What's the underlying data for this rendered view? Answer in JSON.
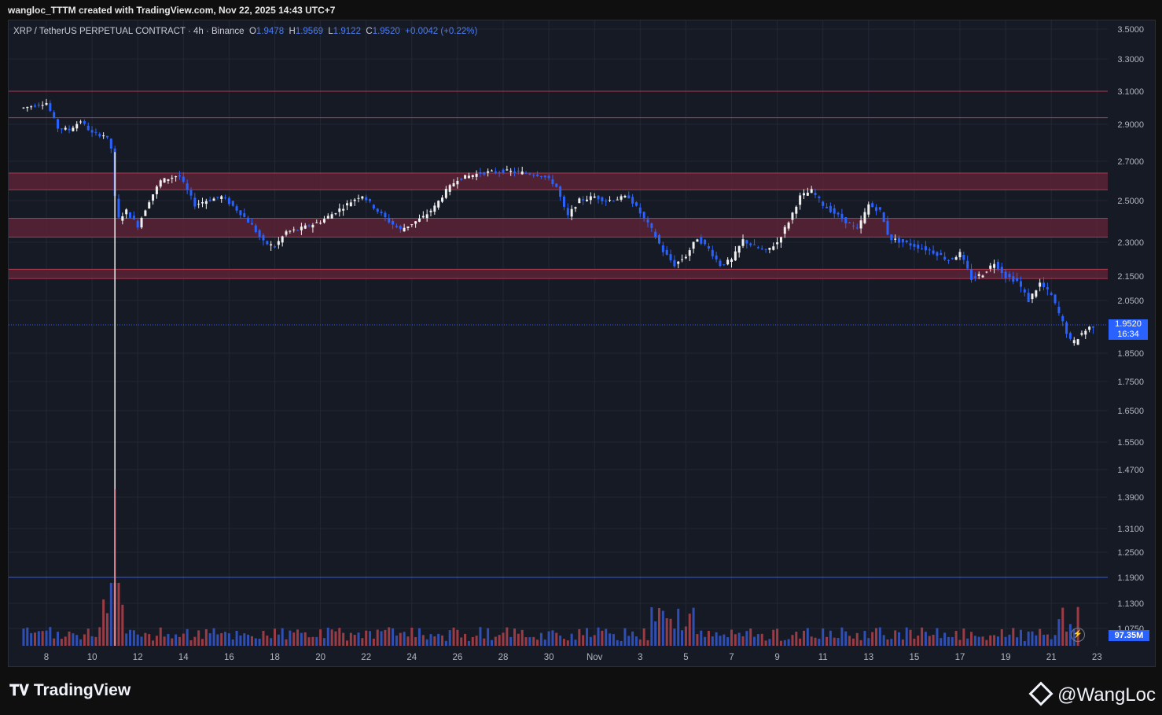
{
  "header": {
    "caption": "wangloc_TTTM created with TradingView.com, Nov 22, 2025 14:43 UTC+7"
  },
  "legend": {
    "symbol": "XRP / TetherUS PERPETUAL CONTRACT · 4h · Binance",
    "o_label": "O",
    "o_value": "1.9478",
    "h_label": "H",
    "h_value": "1.9569",
    "l_label": "L",
    "l_value": "1.9122",
    "c_label": "C",
    "c_value": "1.9520",
    "change": "+0.0042 (+0.22%)"
  },
  "price_tag": {
    "price": "1.9520",
    "countdown": "16:34"
  },
  "volume_tag": "97.35M",
  "branding": {
    "logo_text": "TradingView",
    "author": "@WangLoc"
  },
  "colors": {
    "background": "#161a25",
    "up": "#f0f0f0",
    "down_wick": "#2962ff",
    "zone_fill": "#5b2335",
    "zone_line": "#b0384f",
    "volume_up": "#2f4fb4",
    "volume_down": "#9a3c45",
    "last_price": "#2962ff"
  },
  "chart_data": {
    "type": "candlestick",
    "symbol": "XRP / TetherUS PERPETUAL CONTRACT",
    "interval": "4h",
    "exchange": "Binance",
    "y_ticks": [
      "3.5000",
      "3.3000",
      "3.1000",
      "2.9000",
      "2.7000",
      "2.5000",
      "2.3000",
      "2.1500",
      "2.0500",
      "1.8500",
      "1.7500",
      "1.6500",
      "1.5500",
      "1.4700",
      "1.3900",
      "1.3100",
      "1.2500",
      "1.1900",
      "1.1300",
      "1.0750"
    ],
    "x_ticks": [
      "8",
      "10",
      "12",
      "14",
      "16",
      "18",
      "20",
      "22",
      "24",
      "26",
      "28",
      "30",
      "Nov",
      "3",
      "5",
      "7",
      "9",
      "11",
      "13",
      "15",
      "17",
      "19",
      "21",
      "23"
    ],
    "last_price": 1.952,
    "horizontal_lines": [
      3.1,
      2.94,
      1.19
    ],
    "zones": [
      {
        "low": 2.555,
        "high": 2.64
      },
      {
        "low": 2.325,
        "high": 2.415
      },
      {
        "low": 2.14,
        "high": 2.18
      }
    ],
    "series": [
      {
        "day": 7,
        "value": 3.0
      },
      {
        "day": 8,
        "value": 3.03
      },
      {
        "day": 8.5,
        "value": 2.88
      },
      {
        "day": 9,
        "value": 2.87
      },
      {
        "day": 9.5,
        "value": 2.92
      },
      {
        "day": 10,
        "value": 2.85
      },
      {
        "day": 10.6,
        "value": 2.84
      },
      {
        "day": 10.9,
        "value": 2.75
      },
      {
        "day": 11.05,
        "value": 2.4
      },
      {
        "day": 11.5,
        "value": 2.45
      },
      {
        "day": 12,
        "value": 2.38
      },
      {
        "day": 12.5,
        "value": 2.5
      },
      {
        "day": 13,
        "value": 2.6
      },
      {
        "day": 13.8,
        "value": 2.63
      },
      {
        "day": 14.5,
        "value": 2.48
      },
      {
        "day": 15,
        "value": 2.5
      },
      {
        "day": 15.7,
        "value": 2.52
      },
      {
        "day": 16.5,
        "value": 2.44
      },
      {
        "day": 17,
        "value": 2.38
      },
      {
        "day": 17.5,
        "value": 2.3
      },
      {
        "day": 18,
        "value": 2.28
      },
      {
        "day": 18.5,
        "value": 2.35
      },
      {
        "day": 19,
        "value": 2.36
      },
      {
        "day": 20,
        "value": 2.4
      },
      {
        "day": 21,
        "value": 2.47
      },
      {
        "day": 21.8,
        "value": 2.53
      },
      {
        "day": 22.5,
        "value": 2.45
      },
      {
        "day": 23,
        "value": 2.4
      },
      {
        "day": 23.5,
        "value": 2.36
      },
      {
        "day": 24.5,
        "value": 2.42
      },
      {
        "day": 25,
        "value": 2.47
      },
      {
        "day": 25.5,
        "value": 2.55
      },
      {
        "day": 26,
        "value": 2.61
      },
      {
        "day": 27,
        "value": 2.64
      },
      {
        "day": 28,
        "value": 2.65
      },
      {
        "day": 29,
        "value": 2.64
      },
      {
        "day": 29.7,
        "value": 2.63
      },
      {
        "day": 30.3,
        "value": 2.58
      },
      {
        "day": 30.8,
        "value": 2.42
      },
      {
        "day": 31.3,
        "value": 2.5
      },
      {
        "day": 32,
        "value": 2.52
      },
      {
        "day": 32.5,
        "value": 2.5
      },
      {
        "day": 33.5,
        "value": 2.52
      },
      {
        "day": 34,
        "value": 2.44
      },
      {
        "day": 34.5,
        "value": 2.36
      },
      {
        "day": 35,
        "value": 2.26
      },
      {
        "day": 35.5,
        "value": 2.2
      },
      {
        "day": 36,
        "value": 2.24
      },
      {
        "day": 36.5,
        "value": 2.32
      },
      {
        "day": 37,
        "value": 2.27
      },
      {
        "day": 37.5,
        "value": 2.2
      },
      {
        "day": 38,
        "value": 2.22
      },
      {
        "day": 38.5,
        "value": 2.31
      },
      {
        "day": 39,
        "value": 2.28
      },
      {
        "day": 39.5,
        "value": 2.26
      },
      {
        "day": 40,
        "value": 2.3
      },
      {
        "day": 40.5,
        "value": 2.4
      },
      {
        "day": 41,
        "value": 2.52
      },
      {
        "day": 41.5,
        "value": 2.55
      },
      {
        "day": 42,
        "value": 2.48
      },
      {
        "day": 42.5,
        "value": 2.44
      },
      {
        "day": 43,
        "value": 2.4
      },
      {
        "day": 43.5,
        "value": 2.36
      },
      {
        "day": 44,
        "value": 2.48
      },
      {
        "day": 44.5,
        "value": 2.45
      },
      {
        "day": 44.9,
        "value": 2.32
      },
      {
        "day": 45.5,
        "value": 2.3
      },
      {
        "day": 46.5,
        "value": 2.27
      },
      {
        "day": 47,
        "value": 2.25
      },
      {
        "day": 47.5,
        "value": 2.22
      },
      {
        "day": 48,
        "value": 2.25
      },
      {
        "day": 48.5,
        "value": 2.14
      },
      {
        "day": 49,
        "value": 2.16
      },
      {
        "day": 49.5,
        "value": 2.21
      },
      {
        "day": 50,
        "value": 2.15
      },
      {
        "day": 50.5,
        "value": 2.13
      },
      {
        "day": 51,
        "value": 2.05
      },
      {
        "day": 51.5,
        "value": 2.12
      },
      {
        "day": 52,
        "value": 2.07
      },
      {
        "day": 52.5,
        "value": 1.96
      },
      {
        "day": 52.9,
        "value": 1.88
      },
      {
        "day": 53.3,
        "value": 1.92
      },
      {
        "day": 53.8,
        "value": 1.95
      }
    ]
  }
}
